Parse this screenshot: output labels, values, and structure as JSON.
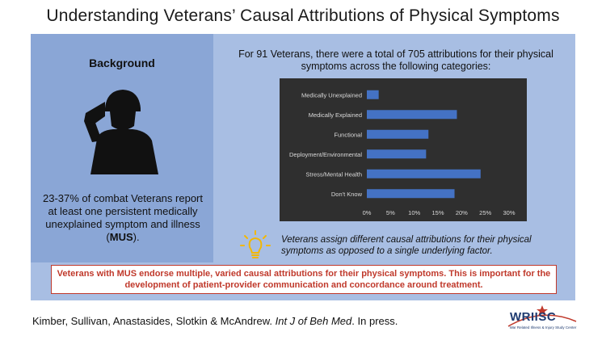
{
  "title": "Understanding Veterans’ Causal Attributions of Physical Symptoms",
  "background": {
    "heading": "Background",
    "stat_text": "23-37% of combat Veterans report at least one persistent medically unexplained symptom and illness (",
    "stat_bold": "MUS",
    "stat_end": ")."
  },
  "intro": "For 91 Veterans, there were a total of 705 attributions for their physical symptoms across the following categories:",
  "chart_data": {
    "type": "bar",
    "orientation": "horizontal",
    "categories": [
      "Medically Unexplained",
      "Medically Explained",
      "Functional",
      "Deployment/Environmental",
      "Stress/Mental Health",
      "Don't Know"
    ],
    "values": [
      2.5,
      19,
      13,
      12.5,
      24,
      18.5
    ],
    "xlim": [
      0,
      30
    ],
    "xticks": [
      "0%",
      "5%",
      "10%",
      "15%",
      "20%",
      "25%",
      "30%"
    ],
    "grid": false,
    "bar_color": "#4472c4",
    "background_color": "#2f2f2f"
  },
  "insight": "Veterans assign different causal attributions for their physical symptoms as opposed to a single underlying factor.",
  "callout": "Veterans with MUS endorse multiple, varied causal attributions for their physical symptoms. This is important for the development of patient-provider communication and concordance around treatment.",
  "citation": {
    "authors": "Kimber, Sullivan, Anastasides, Slotkin & McAndrew.",
    "journal": "Int J of Beh Med",
    "status": ". In press."
  },
  "logo": {
    "name": "WRIISC",
    "subtitle": "War Related Illness & Injury Study Center"
  }
}
